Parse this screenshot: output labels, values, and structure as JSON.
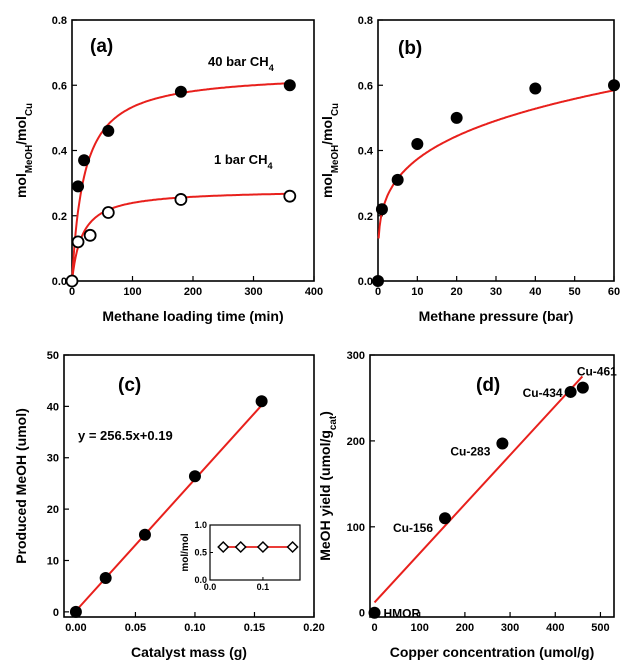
{
  "chart_data": [
    {
      "panel_label": "(a)",
      "type": "scatter",
      "xlabel": "Methane loading time (min)",
      "ylabel": {
        "base": "mol",
        "sub1": "MeOH",
        "mid": "/mol",
        "sub2": "Cu"
      },
      "xlim": [
        0,
        400
      ],
      "ylim": [
        0,
        0.8
      ],
      "xticks": [
        "0",
        "100",
        "200",
        "300",
        "400"
      ],
      "yticks": [
        "0.0",
        "0.2",
        "0.4",
        "0.6",
        "0.8"
      ],
      "series": [
        {
          "name": "40 bar CH4",
          "label": {
            "main": "40 bar CH",
            "sub": "4"
          },
          "marker": "filled-circle",
          "x": [
            0,
            10,
            20,
            60,
            180,
            360
          ],
          "y": [
            0.0,
            0.29,
            0.37,
            0.46,
            0.58,
            0.6
          ],
          "fit": {
            "vmax": 0.64,
            "k": 20
          }
        },
        {
          "name": "1 bar CH4",
          "label": {
            "main": "1 bar CH",
            "sub": "4"
          },
          "marker": "open-circle",
          "x": [
            0,
            10,
            30,
            60,
            180,
            360
          ],
          "y": [
            0.0,
            0.12,
            0.14,
            0.21,
            0.25,
            0.26
          ],
          "fit": {
            "vmax": 0.28,
            "k": 17
          }
        }
      ],
      "fit_color": "#e8201c"
    },
    {
      "panel_label": "(b)",
      "type": "scatter",
      "xlabel": "Methane pressure (bar)",
      "ylabel": {
        "base": "mol",
        "sub1": "MeOH",
        "mid": "/mol",
        "sub2": "Cu"
      },
      "xlim": [
        0,
        60
      ],
      "ylim": [
        0,
        0.8
      ],
      "xticks": [
        "0",
        "10",
        "20",
        "30",
        "40",
        "50",
        "60"
      ],
      "yticks": [
        "0.0",
        "0.2",
        "0.4",
        "0.6",
        "0.8"
      ],
      "series": [
        {
          "marker": "filled-circle",
          "x": [
            0,
            1,
            5,
            10,
            20,
            40,
            60
          ],
          "y": [
            0.0,
            0.22,
            0.31,
            0.42,
            0.5,
            0.59,
            0.6
          ],
          "fit": {
            "a": 0.21,
            "b": 0.25
          }
        }
      ],
      "fit_color": "#e8201c"
    },
    {
      "panel_label": "(c)",
      "type": "scatter",
      "xlabel": "Catalyst mass (g)",
      "ylabel": "Produced MeOH (umol)",
      "xlim": [
        -0.01,
        0.2
      ],
      "ylim": [
        -1,
        50
      ],
      "xticks": [
        "0.00",
        "0.05",
        "0.10",
        "0.15",
        "0.20"
      ],
      "yticks": [
        "0",
        "10",
        "20",
        "30",
        "40",
        "50"
      ],
      "equation": "y = 256.5x+0.19",
      "series": [
        {
          "marker": "filled-circle",
          "x": [
            0,
            0.025,
            0.058,
            0.1,
            0.156
          ],
          "y": [
            0,
            6.6,
            15.0,
            26.4,
            41.0
          ],
          "fit": {
            "slope": 256.5,
            "intercept": 0.19
          }
        }
      ],
      "inset": {
        "ylabel": "mol/mol",
        "xlim": [
          0,
          0.17
        ],
        "ylim": [
          0,
          1.0
        ],
        "yticks": [
          "0.0",
          "0.5",
          "1.0"
        ],
        "xticks": [
          "0.0",
          "0.1"
        ],
        "marker": "open-diamond",
        "x": [
          0.025,
          0.058,
          0.1,
          0.156
        ],
        "y": [
          0.6,
          0.6,
          0.6,
          0.6
        ],
        "fit_y": 0.6
      },
      "fit_color": "#e8201c"
    },
    {
      "panel_label": "(d)",
      "type": "scatter",
      "xlabel": "Copper concentration (umol/g)",
      "ylabel": {
        "base": "MeOH yield (umol/g",
        "sub": "cat",
        "end": ")"
      },
      "xlim": [
        -10,
        530
      ],
      "ylim": [
        -5,
        300
      ],
      "xticks": [
        "0",
        "100",
        "200",
        "300",
        "400",
        "500"
      ],
      "yticks": [
        "0",
        "100",
        "200",
        "300"
      ],
      "series": [
        {
          "marker": "filled-circle",
          "points": [
            {
              "label": "HMOR",
              "x": 0,
              "y": 0
            },
            {
              "label": "Cu-156",
              "x": 156,
              "y": 110
            },
            {
              "label": "Cu-283",
              "x": 283,
              "y": 197
            },
            {
              "label": "Cu-434",
              "x": 434,
              "y": 257
            },
            {
              "label": "Cu-461",
              "x": 461,
              "y": 262
            }
          ],
          "fit": {
            "x0": 0,
            "y0": 12,
            "x1": 460,
            "y1": 275
          }
        }
      ],
      "fit_color": "#e8201c"
    }
  ]
}
